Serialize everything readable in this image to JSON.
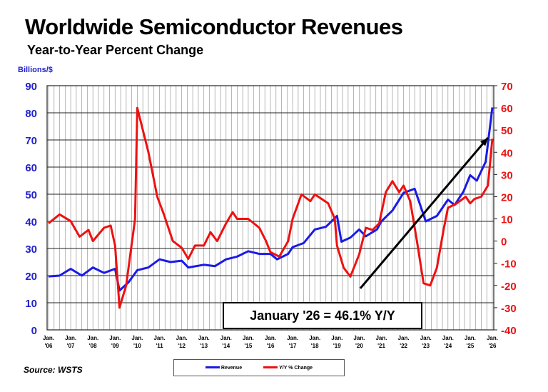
{
  "chart_data": {
    "type": "line",
    "title": "Worldwide Semiconductor Revenues",
    "subtitle": "Year-to-Year Percent Change",
    "ylabel": "Billions/$",
    "ylim": [
      0,
      90
    ],
    "y2lim": [
      -40,
      70
    ],
    "yticks": [
      "0",
      "10",
      "20",
      "30",
      "40",
      "50",
      "60",
      "70",
      "80",
      "90"
    ],
    "y2ticks": [
      "-40",
      "-30",
      "-20",
      "-10",
      "0",
      "10",
      "20",
      "30",
      "40",
      "50",
      "60",
      "70"
    ],
    "xticks": [
      [
        "Jan.",
        "'06"
      ],
      [
        "Jan.",
        "'07"
      ],
      [
        "Jan.",
        "'08"
      ],
      [
        "Jan.",
        "'09"
      ],
      [
        "Jan.",
        "'10"
      ],
      [
        "Jan.",
        "'11"
      ],
      [
        "Jan.",
        "'12"
      ],
      [
        "Jan.",
        "'13"
      ],
      [
        "Jan.",
        "'14"
      ],
      [
        "Jan.",
        "'15"
      ],
      [
        "Jan.",
        "'16"
      ],
      [
        "Jan.",
        "'17"
      ],
      [
        "Jan.",
        "'18"
      ],
      [
        "Jan.",
        "'19"
      ],
      [
        "Jan.",
        "'20"
      ],
      [
        "Jan.",
        "'21"
      ],
      [
        "Jan.",
        "'22"
      ],
      [
        "Jan.",
        "'23"
      ],
      [
        "Jan.",
        "'24"
      ],
      [
        "Jan.",
        "'25"
      ],
      [
        "Jan.",
        "'26"
      ]
    ],
    "xlim": [
      2006,
      2026
    ],
    "legend": [
      "Revenue",
      "Y/Y % Change"
    ],
    "legend_position": "bottom-center",
    "annotation": "January '26 = 46.1% Y/Y",
    "source": "Source: WSTS",
    "colors": {
      "revenue": "#1a1ae6",
      "yoy": "#ee1111",
      "axis_left": "#2222cc",
      "axis_right": "#ee1111"
    },
    "series": [
      {
        "name": "Revenue",
        "axis": "left",
        "x": [
          2006.0,
          2006.5,
          2007.0,
          2007.5,
          2008.0,
          2008.5,
          2009.0,
          2009.2,
          2009.6,
          2010.0,
          2010.5,
          2011.0,
          2011.5,
          2012.0,
          2012.3,
          2013.0,
          2013.5,
          2014.0,
          2014.5,
          2015.0,
          2015.5,
          2016.0,
          2016.3,
          2016.8,
          2017.0,
          2017.5,
          2018.0,
          2018.5,
          2019.0,
          2019.2,
          2019.6,
          2020.0,
          2020.3,
          2020.8,
          2021.0,
          2021.5,
          2022.0,
          2022.5,
          2023.0,
          2023.5,
          2024.0,
          2024.3,
          2024.7,
          2025.0,
          2025.3,
          2025.7,
          2026.0
        ],
        "values": [
          19.7,
          20,
          22.5,
          20,
          23,
          21,
          22.5,
          14.5,
          17.5,
          22,
          23,
          26,
          25,
          25.5,
          23,
          24,
          23.5,
          26,
          27,
          29,
          28,
          28,
          26,
          28,
          30.5,
          32,
          37,
          38,
          42,
          32.5,
          34,
          37,
          34.5,
          37,
          40,
          44,
          50.5,
          52,
          40,
          42,
          48,
          46,
          51,
          57,
          55,
          62,
          82
        ]
      },
      {
        "name": "Y/Y % Change",
        "axis": "right",
        "x": [
          2006.0,
          2006.5,
          2007.0,
          2007.4,
          2007.8,
          2008.0,
          2008.5,
          2008.8,
          2009.0,
          2009.2,
          2009.5,
          2009.9,
          2010.0,
          2010.5,
          2010.9,
          2011.2,
          2011.6,
          2012.0,
          2012.3,
          2012.6,
          2013.0,
          2013.3,
          2013.6,
          2014.0,
          2014.3,
          2014.5,
          2015.0,
          2015.5,
          2015.8,
          2016.0,
          2016.4,
          2016.8,
          2017.0,
          2017.4,
          2017.8,
          2018.0,
          2018.6,
          2018.9,
          2019.0,
          2019.3,
          2019.6,
          2020.0,
          2020.3,
          2020.6,
          2020.9,
          2021.2,
          2021.5,
          2021.8,
          2022.0,
          2022.3,
          2022.6,
          2022.9,
          2023.2,
          2023.5,
          2023.8,
          2024.0,
          2024.4,
          2024.8,
          2025.0,
          2025.2,
          2025.5,
          2025.8,
          2026.0
        ],
        "values": [
          8,
          12,
          9,
          2,
          5,
          0,
          6,
          7,
          -2,
          -30,
          -20,
          10,
          60,
          40,
          20,
          12,
          0,
          -3,
          -8,
          -2,
          -2,
          4,
          0,
          8,
          13,
          10,
          10,
          6,
          0,
          -5,
          -7,
          0,
          10,
          21,
          18,
          21,
          17,
          10,
          -2,
          -12,
          -16,
          -6,
          6,
          5,
          8,
          22,
          27,
          22,
          25,
          18,
          0,
          -19,
          -20,
          -12,
          5,
          15,
          17,
          20,
          17,
          19,
          20,
          25,
          46.1
        ]
      }
    ],
    "trend_arrow": {
      "from": [
        2020.05,
        15.3
      ],
      "to": [
        2025.8,
        70.8
      ],
      "axis": "left"
    }
  }
}
